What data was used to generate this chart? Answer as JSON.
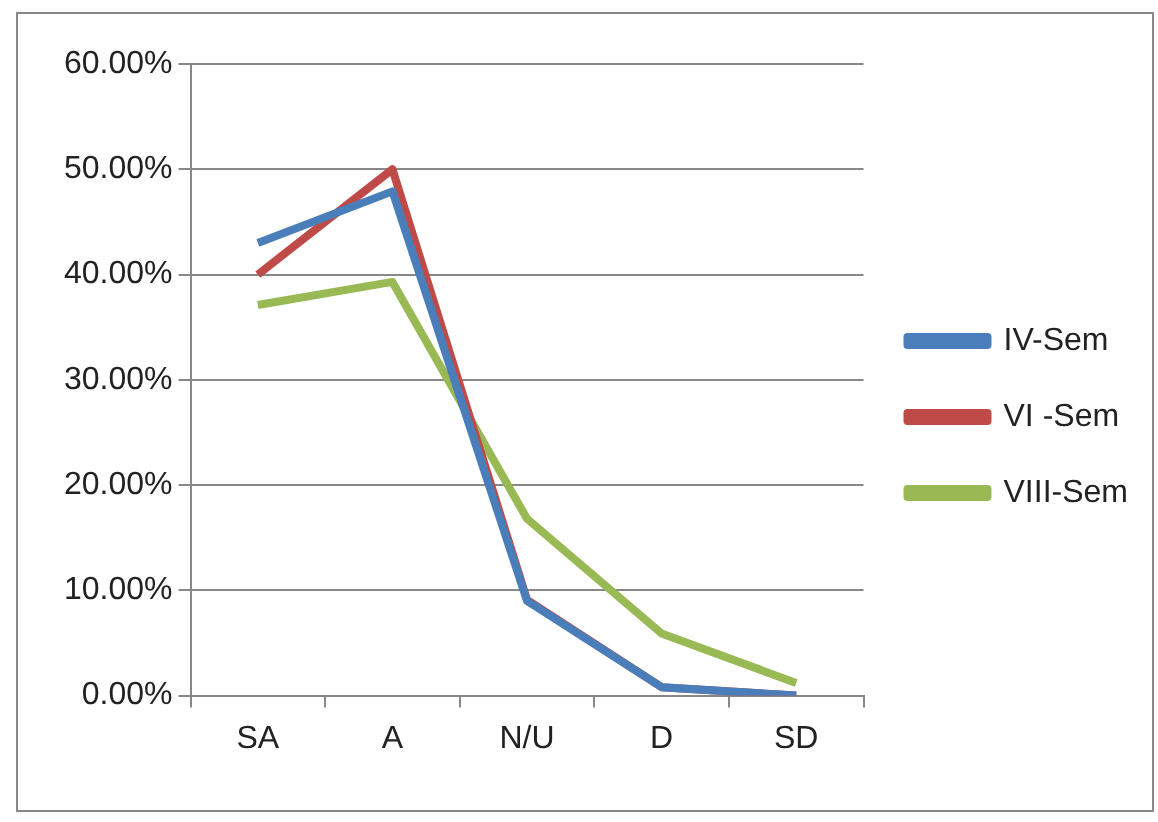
{
  "chart_data": {
    "type": "line",
    "categories": [
      "SA",
      "A",
      "N/U",
      "D",
      "SD"
    ],
    "series": [
      {
        "name": "IV-Sem",
        "color": "#4a7ebb",
        "values": [
          43.0,
          47.9,
          9.0,
          0.8,
          0
        ]
      },
      {
        "name": "VI -Sem",
        "color": "#be4b48",
        "values": [
          40.0,
          50.0,
          9.1,
          0.8,
          0
        ]
      },
      {
        "name": "VIII-Sem",
        "color": "#98b954",
        "values": [
          37.1,
          39.3,
          16.8,
          5.9,
          1.2
        ]
      }
    ],
    "ylim": [
      0,
      60
    ],
    "yticks": [
      {
        "value": 0,
        "label": "0.00%"
      },
      {
        "value": 10,
        "label": "10.00%"
      },
      {
        "value": 20,
        "label": "20.00%"
      },
      {
        "value": 30,
        "label": "30.00%"
      },
      {
        "value": 40,
        "label": "40.00%"
      },
      {
        "value": 50,
        "label": "50.00%"
      },
      {
        "value": 60,
        "label": "60.00%"
      }
    ],
    "grid": "y",
    "legend": "right",
    "marker": "none",
    "line_style": "solid"
  }
}
